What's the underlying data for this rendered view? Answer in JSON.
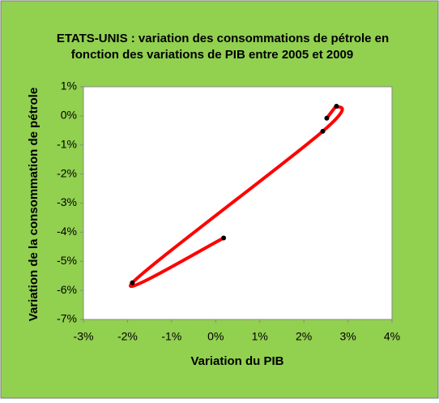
{
  "chart_data": {
    "type": "scatter",
    "title": [
      "ETATS-UNIS : variation des consommations de pétrole en",
      "fonction des variations de PIB entre  2005 et 2009"
    ],
    "x_label": "Variation du PIB",
    "y_label": "Variation de la consommation de pétrole",
    "x": [
      2.52,
      2.74,
      2.43,
      -1.89,
      0.18
    ],
    "values": [
      -0.08,
      0.33,
      -0.53,
      -5.74,
      -4.2
    ],
    "line_color": "#ff0000",
    "marker_color": "#000000",
    "smooth": true,
    "xlim": [
      -3,
      4
    ],
    "xticks": [
      {
        "value": -3,
        "label": "-3%"
      },
      {
        "value": -2,
        "label": "-2%"
      },
      {
        "value": -1,
        "label": "-1%"
      },
      {
        "value": 0,
        "label": "0%"
      },
      {
        "value": 1,
        "label": "1%"
      },
      {
        "value": 2,
        "label": "2%"
      },
      {
        "value": 3,
        "label": "3%"
      },
      {
        "value": 4,
        "label": "4%"
      }
    ],
    "ylim": [
      -7,
      1
    ],
    "yticks": [
      {
        "value": 1,
        "label": "1%"
      },
      {
        "value": 0,
        "label": "0%"
      },
      {
        "value": -1,
        "label": "-1%"
      },
      {
        "value": -2,
        "label": "-2%"
      },
      {
        "value": -3,
        "label": "-3%"
      },
      {
        "value": -4,
        "label": "-4%"
      },
      {
        "value": -5,
        "label": "-5%"
      },
      {
        "value": -6,
        "label": "-6%"
      },
      {
        "value": -7,
        "label": "-7%"
      }
    ]
  }
}
